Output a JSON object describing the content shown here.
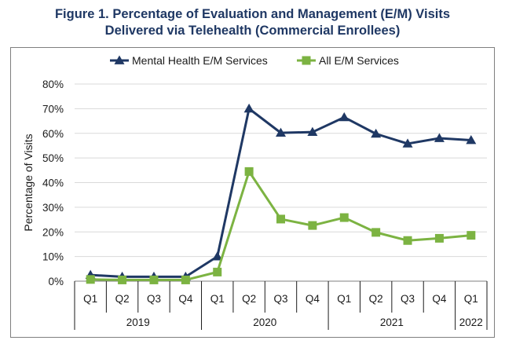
{
  "chart_data": {
    "type": "line",
    "title_line1": "Figure 1. Percentage of Evaluation and Management (E/M) Visits",
    "title_line2": "Delivered via Telehealth (Commercial Enrollees)",
    "ylabel": "Percentage of Visits",
    "xlabel": "",
    "ylim": [
      0,
      80
    ],
    "yticks": [
      0,
      10,
      20,
      30,
      40,
      50,
      60,
      70,
      80
    ],
    "ytick_labels": [
      "0%",
      "10%",
      "20%",
      "30%",
      "40%",
      "50%",
      "60%",
      "70%",
      "80%"
    ],
    "categories": [
      "Q1",
      "Q2",
      "Q3",
      "Q4",
      "Q1",
      "Q2",
      "Q3",
      "Q4",
      "Q1",
      "Q2",
      "Q3",
      "Q4",
      "Q1"
    ],
    "year_groups": [
      {
        "label": "2019",
        "count": 4
      },
      {
        "label": "2020",
        "count": 4
      },
      {
        "label": "2021",
        "count": 4
      },
      {
        "label": "2022",
        "count": 1
      }
    ],
    "legend_position": "top",
    "grid": "horizontal",
    "series": [
      {
        "name": "Mental Health E/M Services",
        "color": "#1f3864",
        "marker": "triangle",
        "values": [
          2.5,
          1.8,
          1.8,
          1.8,
          10.0,
          70.0,
          60.2,
          60.5,
          66.5,
          59.8,
          55.8,
          58.0,
          57.2
        ]
      },
      {
        "name": "All E/M Services",
        "color": "#7cb342",
        "marker": "square",
        "values": [
          0.7,
          0.5,
          0.5,
          0.5,
          3.7,
          44.5,
          25.2,
          22.6,
          25.8,
          19.8,
          16.5,
          17.4,
          18.6
        ]
      }
    ]
  }
}
